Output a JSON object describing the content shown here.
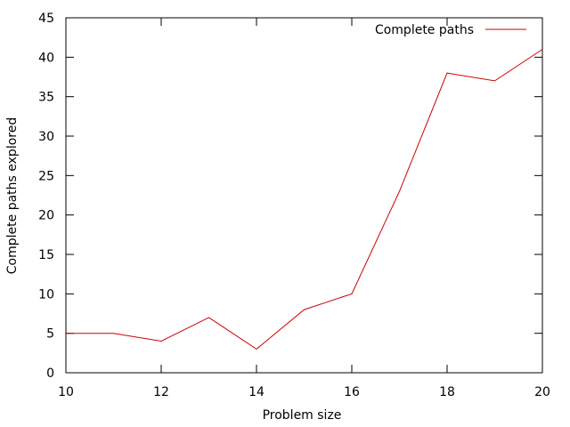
{
  "chart_data": {
    "type": "line",
    "xlabel": "Problem size",
    "ylabel": "Complete paths explored",
    "xlim": [
      10,
      20
    ],
    "ylim": [
      0,
      45
    ],
    "x_ticks": [
      10,
      12,
      14,
      16,
      18,
      20
    ],
    "y_ticks": [
      0,
      5,
      10,
      15,
      20,
      25,
      30,
      35,
      40,
      45
    ],
    "x_tick_labels": [
      "10",
      "12",
      "14",
      "16",
      "18",
      "20"
    ],
    "y_tick_labels": [
      "0",
      "5",
      "10",
      "15",
      "20",
      "25",
      "30",
      "35",
      "40",
      "45"
    ],
    "grid": false,
    "legend_position": "top-right",
    "series": [
      {
        "name": "Complete paths",
        "color": "#cc0000",
        "x": [
          10,
          11,
          12,
          13,
          14,
          15,
          16,
          17,
          18,
          19,
          20
        ],
        "y": [
          5,
          5,
          4,
          7,
          3,
          8,
          10,
          23,
          38,
          37,
          41
        ]
      }
    ]
  }
}
